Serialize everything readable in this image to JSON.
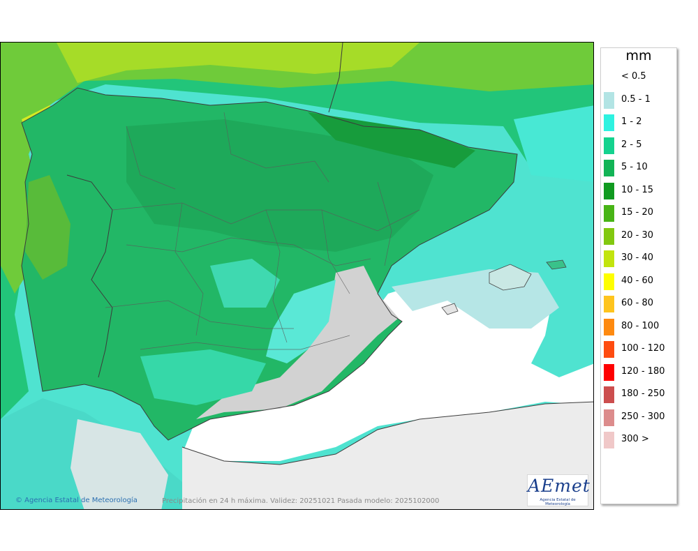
{
  "legend": {
    "unit": "mm",
    "items": [
      {
        "label": "< 0.5",
        "color": "#ffffff"
      },
      {
        "label": "0.5 - 1",
        "color": "#b2e4e4"
      },
      {
        "label": "1 - 2",
        "color": "#2ef2e0"
      },
      {
        "label": "2 - 5",
        "color": "#14d28e"
      },
      {
        "label": "5 - 10",
        "color": "#12b456"
      },
      {
        "label": "10 - 15",
        "color": "#109a20"
      },
      {
        "label": "15 - 20",
        "color": "#48b416"
      },
      {
        "label": "20 - 30",
        "color": "#82c810"
      },
      {
        "label": "30 - 40",
        "color": "#c2e40e"
      },
      {
        "label": "40 - 60",
        "color": "#fefe00"
      },
      {
        "label": "60 - 80",
        "color": "#fec41e"
      },
      {
        "label": "80 - 100",
        "color": "#fe8a10"
      },
      {
        "label": "100 - 120",
        "color": "#fe4c10"
      },
      {
        "label": "120 - 180",
        "color": "#fe0000"
      },
      {
        "label": "180 - 250",
        "color": "#cc4e4e"
      },
      {
        "label": "250 - 300",
        "color": "#dc8c8c"
      },
      {
        "label": "300 >",
        "color": "#f0c8c8"
      }
    ]
  },
  "footer": {
    "credit": "© Agencia Estatal de Meteorología",
    "caption": "Precipitación en 24 h máxima. Validez: 20251021 Pasada modelo: 2025102000"
  },
  "logo": {
    "text": "AEmet",
    "subtitle": "Agencia Estatal de Meteorología"
  }
}
